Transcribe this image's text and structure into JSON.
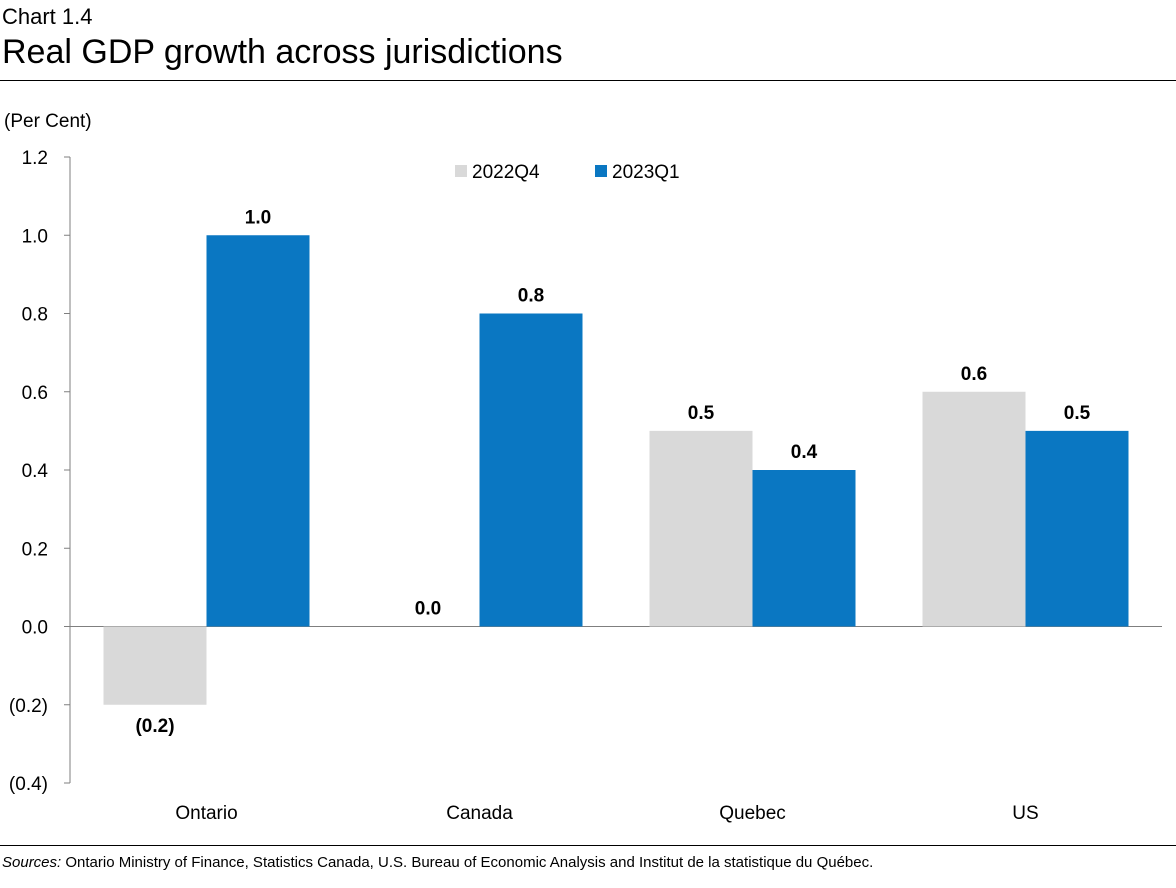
{
  "header": {
    "chart_number": "Chart 1.4",
    "title": "Real GDP growth across jurisdictions"
  },
  "footer": {
    "source_label": "Sources:",
    "source_text": " Ontario Ministry of Finance, Statistics Canada, U.S. Bureau of Economic Analysis and Institut de la statistique du Québec."
  },
  "colors": {
    "series_2022q4": "#d9d9d9",
    "series_2023q1": "#0a77c2",
    "axis": "#7f7f7f"
  },
  "chart_data": {
    "type": "bar",
    "title": "Real GDP growth across jurisdictions",
    "ylabel": "(Per Cent)",
    "xlabel": "",
    "ylim": [
      -0.4,
      1.2
    ],
    "yticks": [
      1.2,
      1.0,
      0.8,
      0.6,
      0.4,
      0.2,
      0.0,
      -0.2,
      -0.4
    ],
    "ytick_labels": [
      "1.2",
      "1.0",
      "0.8",
      "0.6",
      "0.4",
      "0.2",
      "0.0",
      "(0.2)",
      "(0.4)"
    ],
    "grid": false,
    "legend_position": "top-center",
    "categories": [
      "Ontario",
      "Canada",
      "Quebec",
      "US"
    ],
    "series": [
      {
        "name": "2022Q4",
        "values": [
          -0.2,
          0.0,
          0.5,
          0.6
        ],
        "labels": [
          "(0.2)",
          "0.0",
          "0.5",
          "0.6"
        ]
      },
      {
        "name": "2023Q1",
        "values": [
          1.0,
          0.8,
          0.4,
          0.5
        ],
        "labels": [
          "1.0",
          "0.8",
          "0.4",
          "0.5"
        ]
      }
    ]
  }
}
